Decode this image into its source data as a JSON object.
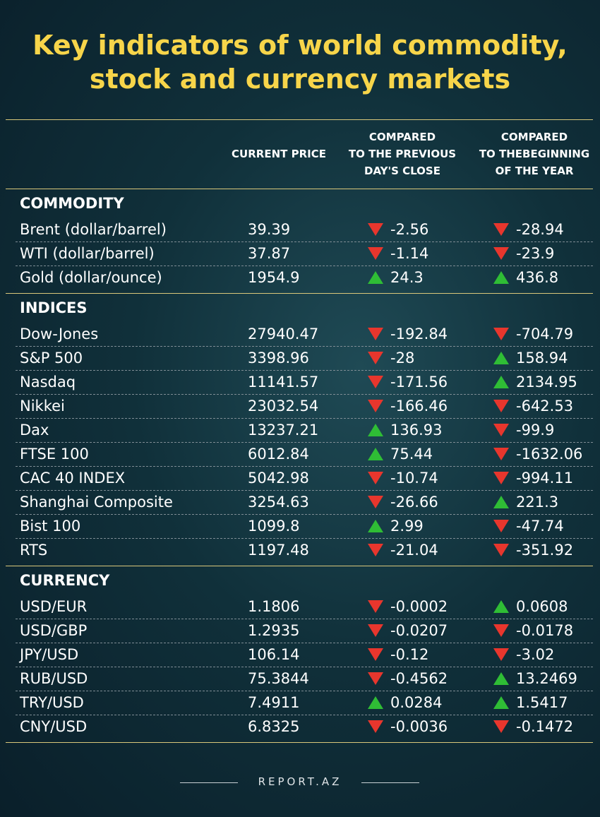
{
  "header": {
    "title": [
      "Key indicators of world commodity,",
      "stock and currency markets"
    ]
  },
  "table": {
    "columns": [
      [
        "CURRENT PRICE"
      ],
      [
        "COMPARED",
        "TO THE PREVIOUS",
        "DAY'S CLOSE"
      ],
      [
        "COMPARED",
        "TO THEBEGINNING",
        "OF THE YEAR"
      ]
    ],
    "sections": [
      {
        "name": "COMMODITY",
        "rows": [
          [
            "Brent (dollar/barrel)",
            "39.39",
            "-2.56",
            "-28.94"
          ],
          [
            "WTI (dollar/barrel)",
            "37.87",
            "-1.14",
            "-23.9"
          ],
          [
            "Gold (dollar/ounce)",
            "1954.9",
            "24.3",
            "436.8"
          ]
        ]
      },
      {
        "name": "INDICES",
        "rows": [
          [
            "Dow-Jones",
            "27940.47",
            "-192.84",
            "-704.79"
          ],
          [
            "S&P 500",
            "3398.96",
            "-28",
            "158.94"
          ],
          [
            "Nasdaq",
            "11141.57",
            "-171.56",
            "2134.95"
          ],
          [
            "Nikkei",
            "23032.54",
            "-166.46",
            "-642.53"
          ],
          [
            "Dax",
            "13237.21",
            "136.93",
            "-99.9"
          ],
          [
            "FTSE 100",
            "6012.84",
            "75.44",
            "-1632.06"
          ],
          [
            "CAC 40 INDEX",
            "5042.98",
            "-10.74",
            "-994.11"
          ],
          [
            "Shanghai Composite",
            "3254.63",
            "-26.66",
            "221.3"
          ],
          [
            "Bist 100",
            "1099.8",
            "2.99",
            "-47.74"
          ],
          [
            "RTS",
            "1197.48",
            "-21.04",
            "-351.92"
          ]
        ]
      },
      {
        "name": "CURRENCY",
        "rows": [
          [
            "USD/EUR",
            "1.1806",
            "-0.0002",
            "0.0608"
          ],
          [
            "USD/GBP",
            "1.2935",
            "-0.0207",
            "-0.0178"
          ],
          [
            "JPY/USD",
            "106.14",
            "-0.12",
            "-3.02"
          ],
          [
            "RUB/USD",
            "75.3844",
            "-0.4562",
            "13.2469"
          ],
          [
            "TRY/USD",
            "7.4911",
            "0.0284",
            "1.5417"
          ],
          [
            "CNY/USD",
            "6.8325",
            "-0.0036",
            "-0.1472"
          ]
        ]
      }
    ]
  },
  "footer": "REPORT.AZ"
}
